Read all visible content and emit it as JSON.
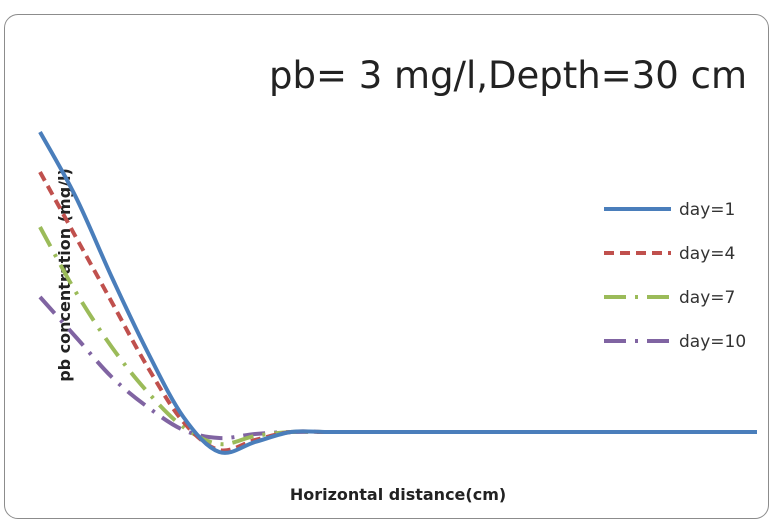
{
  "chart_data": {
    "type": "line",
    "title": "pb= 3 mg/l,Depth=30 cm",
    "xlabel": "Horizontal distance(cm)",
    "ylabel": "pb concentration (mg/l)",
    "xlim": [
      0,
      100
    ],
    "ylim": [
      0,
      3
    ],
    "grid": false,
    "legend_position": "right",
    "series": [
      {
        "name": "day=1",
        "color": "#4a7ebb",
        "dash": "solid",
        "x": [
          0,
          5,
          10,
          15,
          20,
          25,
          30,
          35,
          40,
          45,
          50,
          55,
          60,
          65,
          70,
          75,
          80,
          85,
          90,
          95,
          100
        ],
        "y": [
          3.0,
          2.35,
          1.55,
          0.8,
          0.15,
          -0.2,
          -0.1,
          0.0,
          0.0,
          0.0,
          0.0,
          0.0,
          0.0,
          0.0,
          0.0,
          0.0,
          0.0,
          0.0,
          0.0,
          0.0,
          0.0
        ]
      },
      {
        "name": "day=4",
        "color": "#c0504d",
        "dash": "dashed",
        "x": [
          0,
          5,
          10,
          15,
          20,
          25,
          30,
          35,
          40,
          45,
          50,
          55,
          60,
          65,
          70,
          75,
          80,
          85,
          90,
          95,
          100
        ],
        "y": [
          2.6,
          1.95,
          1.3,
          0.65,
          0.1,
          -0.18,
          -0.08,
          0.0,
          0.0,
          0.0,
          0.0,
          0.0,
          0.0,
          0.0,
          0.0,
          0.0,
          0.0,
          0.0,
          0.0,
          0.0,
          0.0
        ]
      },
      {
        "name": "day=7",
        "color": "#9bbb59",
        "dash": "long-dash-dot",
        "x": [
          0,
          5,
          10,
          15,
          20,
          25,
          30,
          35,
          40,
          45,
          50,
          55,
          60,
          65,
          70,
          75,
          80,
          85,
          90,
          95,
          100
        ],
        "y": [
          2.05,
          1.4,
          0.85,
          0.4,
          0.05,
          -0.12,
          -0.04,
          0.0,
          0.0,
          0.0,
          0.0,
          0.0,
          0.0,
          0.0,
          0.0,
          0.0,
          0.0,
          0.0,
          0.0,
          0.0,
          0.0
        ]
      },
      {
        "name": "day=10",
        "color": "#8064a2",
        "dash": "long-dash-dot",
        "x": [
          0,
          5,
          10,
          15,
          20,
          25,
          30,
          35,
          40,
          45,
          50,
          55,
          60,
          65,
          70,
          75,
          80,
          85,
          90,
          95,
          100
        ],
        "y": [
          1.35,
          0.95,
          0.55,
          0.25,
          0.02,
          -0.06,
          -0.02,
          0.0,
          0.0,
          0.0,
          0.0,
          0.0,
          0.0,
          0.0,
          0.0,
          0.0,
          0.0,
          0.0,
          0.0,
          0.0,
          0.0
        ]
      }
    ]
  }
}
